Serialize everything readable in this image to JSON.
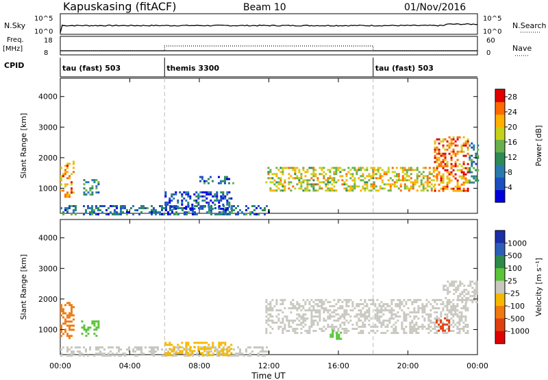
{
  "header": {
    "station": "Kapuskasing (fitACF)",
    "beam": "Beam 10",
    "date": "01/Nov/2016"
  },
  "strip_labels": {
    "nsky": "N.Sky",
    "nsky_ticks": [
      "10^5",
      "10^0"
    ],
    "nsearch": "N.Search",
    "nsearch_ticks": [
      "10^5",
      "10^0"
    ],
    "freq_top": "Freq.",
    "freq_unit": "[MHz]",
    "freq_ticks": [
      "18",
      "8"
    ],
    "nave": "Nave",
    "nave_ticks": [
      "60",
      "0"
    ],
    "cpid": "CPID"
  },
  "cpid_segments": [
    {
      "label": "tau (fast) 503",
      "start_hour": 0
    },
    {
      "label": "themis 3300",
      "start_hour": 6
    },
    {
      "label": "tau (fast) 503",
      "start_hour": 18
    }
  ],
  "colors": {
    "power": [
      "#0000dd",
      "#1d4fc0",
      "#2a7ab0",
      "#2e8b57",
      "#6ab04c",
      "#c6d21a",
      "#ffb000",
      "#ff6a00",
      "#e00000"
    ],
    "velocity": [
      "#1b2fa8",
      "#2e5fb8",
      "#2e8a4a",
      "#5bc43a",
      "#c8c8c0",
      "#f5b800",
      "#f07a10",
      "#e04010",
      "#e00000"
    ],
    "ground_scatter": "#c8c8c0"
  },
  "chart_data": [
    {
      "type": "heatmap",
      "name": "power",
      "title": "",
      "xlabel": "",
      "ylabel": "Slant Range [km]",
      "xlim": [
        0,
        24
      ],
      "ylim": [
        180,
        4600
      ],
      "x_ticks": [
        "00:00",
        "04:00",
        "08:00",
        "12:00",
        "16:00",
        "20:00",
        "00:00"
      ],
      "y_ticks": [
        1000,
        2000,
        3000,
        4000
      ],
      "colorbar_label": "Power [dB]",
      "colorbar_ticks": [
        4,
        8,
        12,
        16,
        20,
        24,
        28
      ],
      "colorbar_range": [
        0,
        30
      ],
      "regions": [
        {
          "t": [
            0.0,
            0.8
          ],
          "r": [
            700,
            1900
          ],
          "val": 22
        },
        {
          "t": [
            1.2,
            2.2
          ],
          "r": [
            800,
            1300
          ],
          "val": 12
        },
        {
          "t": [
            0.0,
            12.0
          ],
          "r": [
            180,
            450
          ],
          "val": 8
        },
        {
          "t": [
            6.0,
            9.8
          ],
          "r": [
            300,
            900
          ],
          "val": 6
        },
        {
          "t": [
            8.0,
            10.0
          ],
          "r": [
            1150,
            1400
          ],
          "val": 8
        },
        {
          "t": [
            11.8,
            18.0
          ],
          "r": [
            900,
            1700
          ],
          "val": 18
        },
        {
          "t": [
            18.0,
            21.5
          ],
          "r": [
            900,
            1700
          ],
          "val": 20
        },
        {
          "t": [
            21.5,
            23.5
          ],
          "r": [
            900,
            2700
          ],
          "val": 24
        },
        {
          "t": [
            23.5,
            24.0
          ],
          "r": [
            1200,
            2500
          ],
          "val": 10
        }
      ]
    },
    {
      "type": "heatmap",
      "name": "velocity",
      "title": "",
      "xlabel": "Time UT",
      "ylabel": "Slant Range [km]",
      "xlim": [
        0,
        24
      ],
      "ylim": [
        180,
        4600
      ],
      "x_ticks": [
        "00:00",
        "04:00",
        "08:00",
        "12:00",
        "16:00",
        "20:00",
        "00:00"
      ],
      "y_ticks": [
        1000,
        2000,
        3000,
        4000
      ],
      "colorbar_label": "Velocity [m s⁻¹]",
      "colorbar_ticks": [
        "1000",
        "500",
        "100",
        "25",
        "-25",
        "-100",
        "-500",
        "-1000"
      ],
      "regions": [
        {
          "t": [
            0.0,
            0.8
          ],
          "r": [
            700,
            1900
          ],
          "val": "orange"
        },
        {
          "t": [
            1.2,
            2.2
          ],
          "r": [
            800,
            1300
          ],
          "val": "green"
        },
        {
          "t": [
            0.0,
            12.0
          ],
          "r": [
            180,
            450
          ],
          "val": "ground"
        },
        {
          "t": [
            6.0,
            9.8
          ],
          "r": [
            180,
            600
          ],
          "val": "yellow"
        },
        {
          "t": [
            11.8,
            23.5
          ],
          "r": [
            900,
            2000
          ],
          "val": "ground"
        },
        {
          "t": [
            15.5,
            16.2
          ],
          "r": [
            700,
            1000
          ],
          "val": "green"
        },
        {
          "t": [
            21.6,
            22.4
          ],
          "r": [
            950,
            1400
          ],
          "val": "red-orange"
        },
        {
          "t": [
            22.0,
            24.0
          ],
          "r": [
            1900,
            2600
          ],
          "val": "ground"
        }
      ]
    }
  ]
}
